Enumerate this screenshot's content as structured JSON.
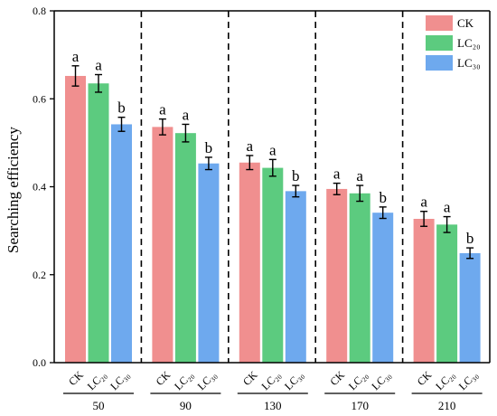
{
  "chart_data": {
    "type": "bar",
    "ylabel": "Searching efficiency",
    "ylim": [
      0,
      0.8
    ],
    "yticks": [
      0.0,
      0.2,
      0.4,
      0.6,
      0.8
    ],
    "ytick_labels": [
      "0.0",
      "0.2",
      "0.4",
      "0.6",
      "0.8"
    ],
    "group_separators": "dashed",
    "legend_position": "top-right",
    "groups": [
      {
        "label": "50",
        "values": [
          0.652,
          0.635,
          0.542
        ],
        "errors": [
          0.023,
          0.02,
          0.016
        ],
        "letters": [
          "a",
          "a",
          "b"
        ]
      },
      {
        "label": "90",
        "values": [
          0.536,
          0.522,
          0.453
        ],
        "errors": [
          0.018,
          0.02,
          0.014
        ],
        "letters": [
          "a",
          "a",
          "b"
        ]
      },
      {
        "label": "130",
        "values": [
          0.455,
          0.443,
          0.39
        ],
        "errors": [
          0.016,
          0.019,
          0.013
        ],
        "letters": [
          "a",
          "a",
          "b"
        ]
      },
      {
        "label": "170",
        "values": [
          0.395,
          0.385,
          0.341
        ],
        "errors": [
          0.013,
          0.018,
          0.013
        ],
        "letters": [
          "a",
          "a",
          "b"
        ]
      },
      {
        "label": "210",
        "values": [
          0.327,
          0.314,
          0.249
        ],
        "errors": [
          0.017,
          0.018,
          0.012
        ],
        "letters": [
          "a",
          "a",
          "b"
        ]
      }
    ],
    "series": [
      {
        "name": "CK",
        "tick_label": "CK",
        "color": "#f08f8f"
      },
      {
        "name": "LC₂₀",
        "tick_label": "LC₂₀",
        "color": "#5ccb7f"
      },
      {
        "name": "LC₃₀",
        "tick_label": "LC₃₀",
        "color": "#6ea9ee"
      }
    ]
  }
}
